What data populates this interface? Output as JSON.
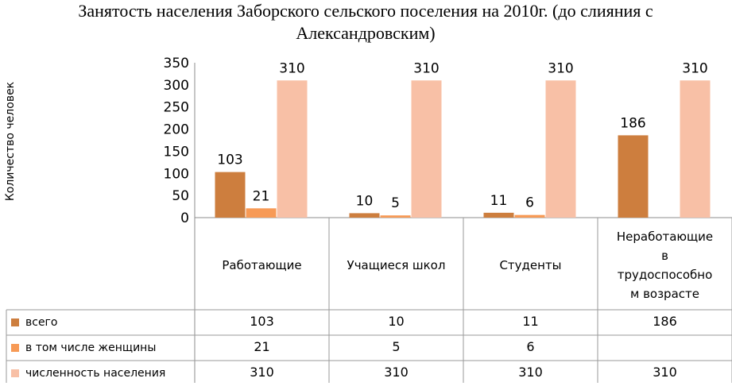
{
  "chart_data": {
    "type": "bar",
    "title": "Занятость населения Заборского сельского поселения на 2010г. (до слияния с Александровским)",
    "ylabel": "Количество человек",
    "xlabel": "",
    "ylim": [
      0,
      350
    ],
    "yticks": [
      0,
      50,
      100,
      150,
      200,
      250,
      300,
      350
    ],
    "categories": [
      "Работающие",
      "Учащиеся школ",
      "Студенты",
      "Неработающие в трудоспособном возрасте"
    ],
    "category_lines": [
      [
        "Работающие"
      ],
      [
        "Учащиеся школ"
      ],
      [
        "Студенты"
      ],
      [
        "Неработающие",
        "в",
        "трудоспособно",
        "м возрасте"
      ]
    ],
    "series": [
      {
        "name": "всего",
        "color": "#CD7E3E",
        "values": [
          103,
          10,
          11,
          186
        ]
      },
      {
        "name": "в том числе женщины",
        "color": "#F79A56",
        "values": [
          21,
          5,
          6,
          null
        ]
      },
      {
        "name": "численность населения",
        "color": "#F8C0A6",
        "values": [
          310,
          310,
          310,
          310
        ]
      }
    ],
    "legend": "data-table",
    "grid": false
  }
}
